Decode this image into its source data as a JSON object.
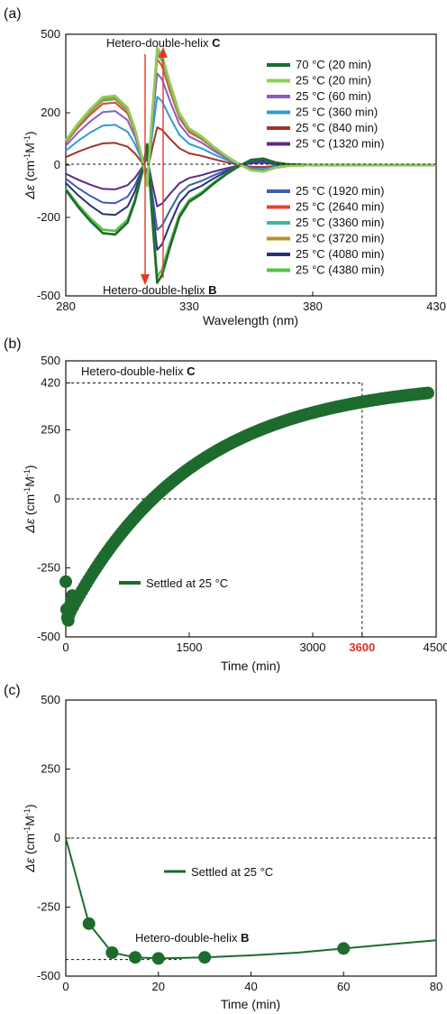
{
  "chart_data": [
    {
      "panel_label": "(a)",
      "type": "line",
      "xlabel": "Wavelength (nm)",
      "ylabel_main": "Δε",
      "ylabel_unit": "(cm",
      "ylabel_sup1": "-1",
      "ylabel_mid": "M",
      "ylabel_sup2": "-1",
      "ylabel_end": ")",
      "xlim": [
        280,
        430
      ],
      "ylim": [
        -500,
        500
      ],
      "xticks": [
        "280",
        "330",
        "380",
        "430"
      ],
      "yticks": [
        "-500",
        "-200",
        "0",
        "200",
        "500"
      ],
      "ytick_values": [
        -500,
        -200,
        0,
        200,
        500
      ],
      "annotations": {
        "top_text": "Hetero-double-helix ",
        "top_bold": "C",
        "bottom_text": "Hetero-double-helix ",
        "bottom_bold": "B"
      },
      "series": [
        {
          "name": "70 °C (20 min)",
          "color": "#1e6b2e",
          "amp": -1.0
        },
        {
          "name": "25 °C (20 min)",
          "color": "#8fce5a",
          "amp": 1.0
        },
        {
          "name": "25 °C (60 min)",
          "color": "#8a5cc4",
          "amp": 0.78
        },
        {
          "name": "25 °C (360 min)",
          "color": "#2f9cd0",
          "amp": 0.58
        },
        {
          "name": "25 °C (840 min)",
          "color": "#a3342c",
          "amp": 0.32
        },
        {
          "name": "25 °C (1320 min)",
          "color": "#5b2a86",
          "amp": -0.35
        },
        {
          "name": "25 °C (1920 min)",
          "color": "#3a5fb0",
          "amp": -0.55
        },
        {
          "name": "25 °C (2640 min)",
          "color": "#e2452f",
          "amp": 0.9
        },
        {
          "name": "25 °C (3360 min)",
          "color": "#3cb89a",
          "amp": 0.95
        },
        {
          "name": "25 °C (3720 min)",
          "color": "#b8922a",
          "amp": 0.97
        },
        {
          "name": "25 °C (4080 min)",
          "color": "#2b2f7a",
          "amp": -0.72
        },
        {
          "name": "25 °C (4380 min)",
          "color": "#55c244",
          "amp": -0.95
        }
      ],
      "profile": {
        "x": [
          280,
          285,
          290,
          295,
          300,
          305,
          308,
          311,
          313,
          315,
          317,
          319,
          322,
          326,
          330,
          335,
          340,
          345,
          350,
          355,
          360,
          365,
          370,
          380,
          400,
          430
        ],
        "y": [
          95,
          160,
          215,
          260,
          265,
          220,
          140,
          25,
          -80,
          200,
          450,
          420,
          320,
          200,
          140,
          110,
          70,
          35,
          5,
          -20,
          -25,
          -10,
          -3,
          0,
          0,
          0
        ]
      }
    },
    {
      "panel_label": "(b)",
      "type": "scatter",
      "xlabel": "Time (min)",
      "ylabel_main": "Δε",
      "ylabel_unit": "(cm",
      "ylabel_sup1": "-1",
      "ylabel_mid": "M",
      "ylabel_sup2": "-1",
      "ylabel_end": ")",
      "xlim": [
        0,
        4500
      ],
      "ylim": [
        -500,
        500
      ],
      "xticks": [
        "0",
        "1500",
        "3000",
        "3600",
        "4500"
      ],
      "xtick_values": [
        0,
        1500,
        3000,
        3600,
        4500
      ],
      "xtick_highlight": "3600",
      "yticks": [
        "-500",
        "-250",
        "0",
        "250",
        "420",
        "500"
      ],
      "ytick_values": [
        -500,
        -250,
        0,
        250,
        420,
        500
      ],
      "legend": "Settled at 25 °C",
      "annotation_text": "Hetero-double-helix ",
      "annotation_bold": "C",
      "color": "#1e6b2e",
      "ref_line_y": 420,
      "ref_line_x": 3600,
      "curve": {
        "plateau": 430,
        "start": -440,
        "tau": 1500,
        "t_max": 4400,
        "n_points": 160
      },
      "early_points": [
        [
          0,
          -300
        ],
        [
          10,
          -400
        ],
        [
          20,
          -430
        ],
        [
          30,
          -440
        ],
        [
          40,
          -420
        ],
        [
          60,
          -380
        ],
        [
          80,
          -350
        ]
      ]
    },
    {
      "panel_label": "(c)",
      "type": "line",
      "xlabel": "Time (min)",
      "ylabel_main": "Δε",
      "ylabel_unit": "(cm",
      "ylabel_sup1": "-1",
      "ylabel_mid": "M",
      "ylabel_sup2": "-1",
      "ylabel_end": ")",
      "xlim": [
        0,
        80
      ],
      "ylim": [
        -500,
        500
      ],
      "xticks": [
        "0",
        "20",
        "40",
        "60",
        "80"
      ],
      "xtick_values": [
        0,
        20,
        40,
        60,
        80
      ],
      "yticks": [
        "-500",
        "-250",
        "0",
        "250",
        "500"
      ],
      "ytick_values": [
        -500,
        -250,
        0,
        250,
        500
      ],
      "legend": "Settled at 25 °C",
      "annotation_text": "Hetero-double-helix ",
      "annotation_bold": "B",
      "color": "#1e6b2e",
      "ref_line_y": -440,
      "line_x": [
        0,
        5,
        10,
        15,
        20,
        30,
        40,
        50,
        60,
        70,
        80
      ],
      "line_y": [
        0,
        -310,
        -415,
        -432,
        -436,
        -432,
        -425,
        -415,
        -400,
        -385,
        -370
      ],
      "points_x": [
        5,
        10,
        15,
        20,
        30,
        60
      ],
      "points_y": [
        -310,
        -415,
        -432,
        -436,
        -432,
        -400
      ]
    }
  ]
}
